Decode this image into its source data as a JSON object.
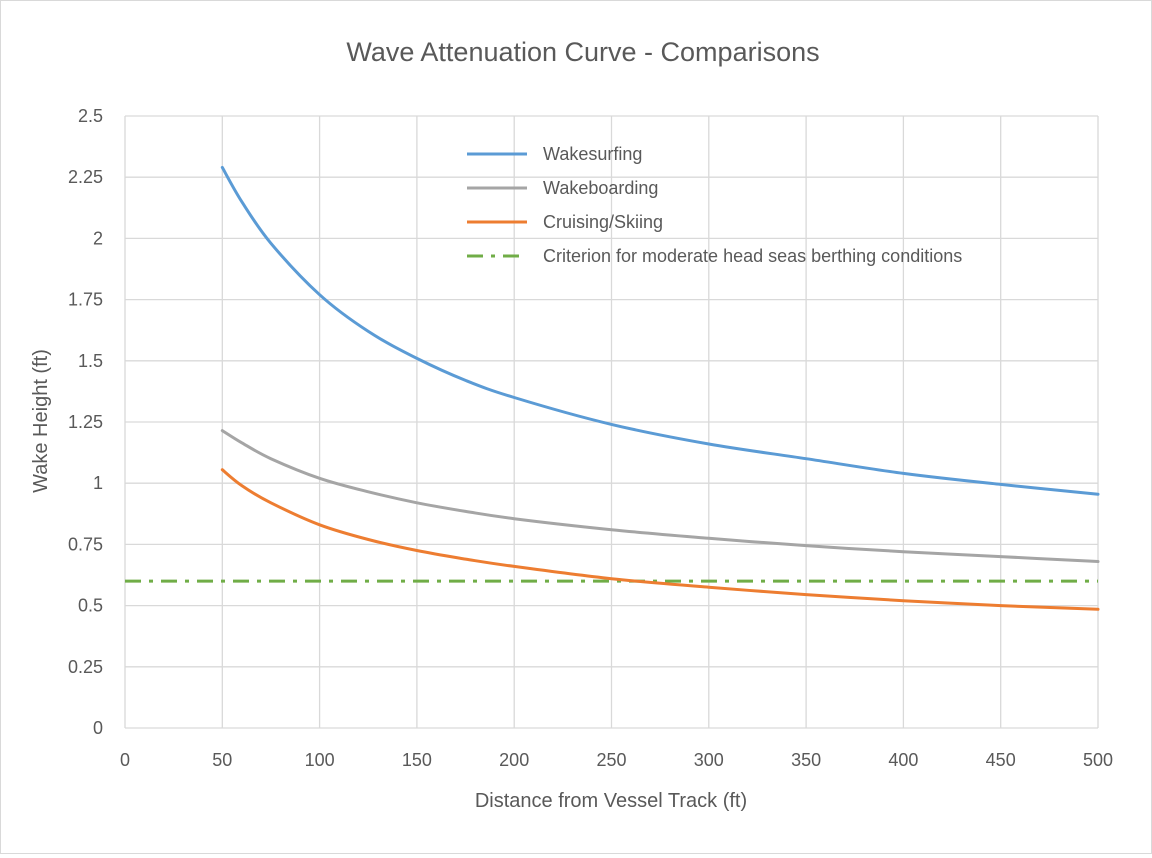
{
  "chart_data": {
    "type": "line",
    "title": "Wave Attenuation Curve - Comparisons",
    "xlabel": "Distance from Vessel Track (ft)",
    "ylabel": "Wake Height (ft)",
    "xlim": [
      0,
      500
    ],
    "ylim": [
      0,
      2.5
    ],
    "x_ticks": [
      "0",
      "50",
      "100",
      "150",
      "200",
      "250",
      "300",
      "350",
      "400",
      "450",
      "500"
    ],
    "y_ticks": [
      "0",
      "0.25",
      "0.5",
      "0.75",
      "1",
      "1.25",
      "1.5",
      "1.75",
      "2",
      "2.25",
      "2.5"
    ],
    "x_tick_values": [
      0,
      50,
      100,
      150,
      200,
      250,
      300,
      350,
      400,
      450,
      500
    ],
    "y_tick_values": [
      0,
      0.25,
      0.5,
      0.75,
      1,
      1.25,
      1.5,
      1.75,
      2,
      2.25,
      2.5
    ],
    "grid": true,
    "legend_position": "top-right",
    "series": [
      {
        "name": "Wakesurfing",
        "color": "#5b9bd5",
        "style": "solid",
        "x": [
          50,
          60,
          75,
          100,
          125,
          150,
          175,
          200,
          250,
          300,
          350,
          400,
          450,
          500
        ],
        "y": [
          2.29,
          2.15,
          1.98,
          1.77,
          1.62,
          1.51,
          1.42,
          1.35,
          1.24,
          1.16,
          1.1,
          1.04,
          0.995,
          0.955
        ]
      },
      {
        "name": "Wakeboarding",
        "color": "#a5a5a5",
        "style": "solid",
        "x": [
          50,
          60,
          75,
          100,
          125,
          150,
          175,
          200,
          250,
          300,
          350,
          400,
          450,
          500
        ],
        "y": [
          1.215,
          1.165,
          1.1,
          1.02,
          0.965,
          0.92,
          0.885,
          0.855,
          0.81,
          0.775,
          0.745,
          0.72,
          0.7,
          0.68
        ]
      },
      {
        "name": "Cruising/Skiing",
        "color": "#ed7d31",
        "style": "solid",
        "x": [
          50,
          60,
          75,
          100,
          125,
          150,
          175,
          200,
          250,
          300,
          350,
          400,
          450,
          500
        ],
        "y": [
          1.055,
          0.99,
          0.92,
          0.83,
          0.77,
          0.725,
          0.69,
          0.66,
          0.61,
          0.575,
          0.545,
          0.52,
          0.5,
          0.485
        ]
      },
      {
        "name": "Criterion for moderate head seas berthing conditions",
        "color": "#70ad47",
        "style": "dash-dot",
        "x": [
          0,
          500
        ],
        "y": [
          0.6,
          0.6
        ]
      }
    ]
  }
}
